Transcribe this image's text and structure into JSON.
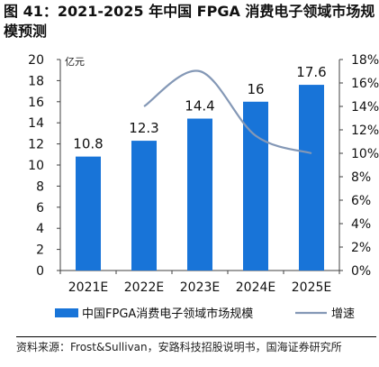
{
  "title": "图 41：2021-2025 年中国 FPGA 消费电子领域市场规模预测",
  "source": "资料来源：Frost&Sullivan，安路科技招股说明书，国海证券研究所",
  "chart_data": {
    "type": "bar",
    "categories": [
      "2021E",
      "2022E",
      "2023E",
      "2024E",
      "2025E"
    ],
    "series": [
      {
        "name": "中国FPGA消费电子领域市场规模",
        "type": "bar",
        "axis": "left",
        "values": [
          10.8,
          12.3,
          14.4,
          16,
          17.6
        ],
        "data_labels": [
          "10.8",
          "12.3",
          "14.4",
          "16",
          "17.6"
        ]
      },
      {
        "name": "增速",
        "type": "line",
        "axis": "right",
        "values": [
          null,
          14.0,
          17.0,
          11.5,
          10.0
        ]
      }
    ],
    "left_axis": {
      "unit_label": "亿元",
      "min": 0,
      "max": 20,
      "ticks": [
        "0",
        "2",
        "4",
        "6",
        "8",
        "10",
        "12",
        "14",
        "16",
        "18",
        "20"
      ]
    },
    "right_axis": {
      "min": 0,
      "max": 18,
      "ticks": [
        "0%",
        "2%",
        "4%",
        "6%",
        "8%",
        "10%",
        "12%",
        "14%",
        "16%",
        "18%"
      ]
    },
    "legend_position": "bottom",
    "colors": {
      "bar": "#1874D8",
      "line": "#8498B6",
      "axis": "#404040"
    }
  }
}
